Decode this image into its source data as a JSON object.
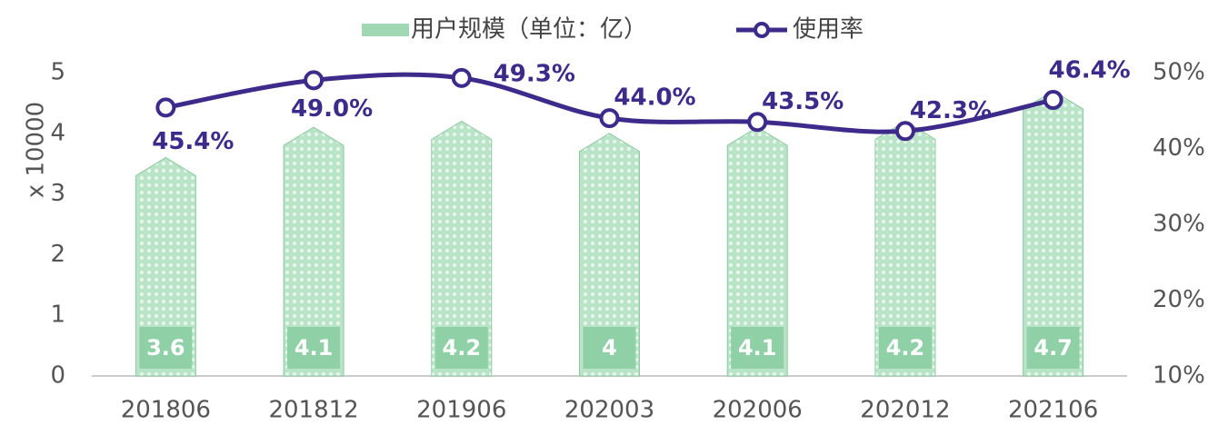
{
  "chart_data": {
    "type": "bar_line",
    "y_label": "x 10000",
    "categories": [
      "201806",
      "201812",
      "201906",
      "202003",
      "202006",
      "202012",
      "202106"
    ],
    "series": [
      {
        "name": "用户规模（单位：亿）",
        "color": "#9fd8b2",
        "type": "bar",
        "values": [
          3.6,
          4.1,
          4.2,
          4.0,
          4.1,
          4.2,
          4.7
        ]
      },
      {
        "name": "使用率",
        "color": "#3d2a8a",
        "type": "line",
        "axis": "y2",
        "values": [
          45.4,
          49.0,
          49.3,
          44.0,
          43.5,
          42.3,
          46.4
        ],
        "value_labels": [
          "45.4%",
          "49.0%",
          "49.3%",
          "44.0%",
          "43.5%",
          "42.3%",
          "46.4%"
        ]
      }
    ],
    "ylim": [
      0,
      5
    ],
    "yticks": [
      0,
      1,
      2,
      3,
      4,
      5
    ],
    "y2lim": [
      10,
      50
    ],
    "y2ticks": [
      {
        "value": 10,
        "label": "10%"
      },
      {
        "value": 20,
        "label": "20%"
      },
      {
        "value": 30,
        "label": "30%"
      },
      {
        "value": 40,
        "label": "40%"
      },
      {
        "value": 50,
        "label": "50%"
      }
    ],
    "legend": "top"
  }
}
